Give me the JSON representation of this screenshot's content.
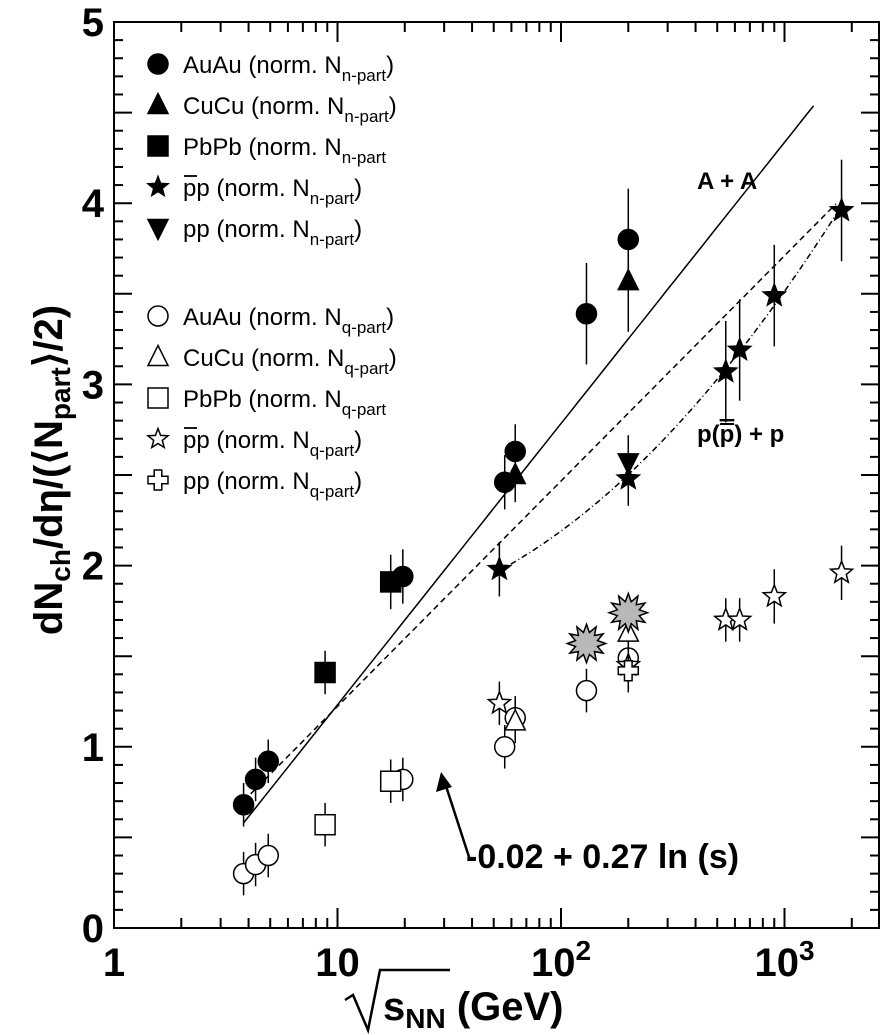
{
  "chart_data": {
    "type": "scatter",
    "title": "",
    "xscale": "log",
    "xlim": [
      1,
      2700
    ],
    "ylim": [
      0,
      5
    ],
    "xticks": [
      {
        "value": 1,
        "base": "1",
        "exp": ""
      },
      {
        "value": 10,
        "base": "10",
        "exp": ""
      },
      {
        "value": 100,
        "base": "10",
        "exp": "2"
      },
      {
        "value": 1000,
        "base": "10",
        "exp": "3"
      }
    ],
    "yticks": [
      "0",
      "1",
      "2",
      "3",
      "4",
      "5"
    ],
    "ylabel": "dN_ch/dη/(⟨N_part⟩/2)",
    "xlabel": "s_NN (GeV)",
    "legend_position": "top-left",
    "series": [
      {
        "name": "AuAu (norm. N_n-part)",
        "marker": "circle",
        "filled": true,
        "points": [
          [
            3.8,
            0.68
          ],
          [
            4.3,
            0.82
          ],
          [
            4.9,
            0.92
          ],
          [
            19.6,
            1.94
          ],
          [
            56,
            2.46
          ],
          [
            62.4,
            2.63
          ],
          [
            130,
            3.39
          ],
          [
            200,
            3.8
          ]
        ]
      },
      {
        "name": "CuCu (norm. N_n-part)",
        "marker": "triangle",
        "filled": true,
        "points": [
          [
            62.4,
            2.5
          ],
          [
            200,
            3.57
          ]
        ]
      },
      {
        "name": "PbPb (norm. N_n-part",
        "marker": "square",
        "filled": true,
        "points": [
          [
            8.8,
            1.41
          ],
          [
            17.3,
            1.91
          ]
        ]
      },
      {
        "name": "p̄p (norm. N_n-part)",
        "marker": "star",
        "filled": true,
        "points": [
          [
            53,
            1.98
          ],
          [
            200,
            2.48
          ],
          [
            546,
            3.07
          ],
          [
            630,
            3.19
          ],
          [
            900,
            3.49
          ],
          [
            1800,
            3.96
          ]
        ]
      },
      {
        "name": "pp (norm. N_n-part)",
        "marker": "triangle-down",
        "filled": true,
        "points": [
          [
            200,
            2.57
          ]
        ]
      },
      {
        "name": "AuAu (norm. N_q-part)",
        "marker": "circle",
        "filled": false,
        "points": [
          [
            3.8,
            0.3
          ],
          [
            4.3,
            0.35
          ],
          [
            4.9,
            0.4
          ],
          [
            19.6,
            0.82
          ],
          [
            56,
            1.0
          ],
          [
            62.4,
            1.16
          ],
          [
            130,
            1.31
          ],
          [
            200,
            1.49
          ]
        ]
      },
      {
        "name": "CuCu (norm. N_q-part)",
        "marker": "triangle",
        "filled": false,
        "points": [
          [
            62.4,
            1.14
          ],
          [
            200,
            1.63
          ]
        ]
      },
      {
        "name": "PbPb (norm. N_q-part",
        "marker": "square",
        "filled": false,
        "points": [
          [
            8.8,
            0.57
          ],
          [
            17.3,
            0.81
          ]
        ]
      },
      {
        "name": "p̄p (norm. N_q-part)",
        "marker": "star",
        "filled": false,
        "points": [
          [
            53,
            1.24
          ],
          [
            200,
            1.45
          ],
          [
            546,
            1.7
          ],
          [
            630,
            1.7
          ],
          [
            900,
            1.83
          ],
          [
            1800,
            1.96
          ]
        ]
      },
      {
        "name": "pp (norm. N_q-part)",
        "marker": "cross",
        "filled": false,
        "points": [
          [
            200,
            1.42
          ]
        ]
      },
      {
        "name": "",
        "marker": "burst",
        "filled": true,
        "color": "#b8b8b8",
        "points": [
          [
            130,
            1.57
          ],
          [
            200,
            1.74
          ]
        ]
      }
    ],
    "fits": [
      {
        "label": "A + A",
        "style": "solid",
        "a": -0.32,
        "b": 0.337
      },
      {
        "label": "p(p̄) + p",
        "style": "dashdot",
        "type": "quadratic",
        "points": [
          [
            53,
            1.98
          ],
          [
            200,
            2.48
          ],
          [
            546,
            3.07
          ],
          [
            900,
            3.49
          ],
          [
            1800,
            3.96
          ]
        ]
      },
      {
        "label": "-0.02 + 0.27 ln (s)",
        "style": "dashed",
        "a": -0.02,
        "b": 0.27
      }
    ],
    "annotations": {
      "aa_label": "A + A",
      "pp_label_pre": "p(",
      "pp_label_bar": "p",
      "pp_label_post": ") + p",
      "formula": "-0.02 + 0.27 ln (s)"
    }
  },
  "axis_title": {
    "y_main": "dN",
    "y_sub_ch": "ch",
    "y_mid": "/dη/(⟨N",
    "y_sub_part": "part",
    "y_end": "⟩/2)",
    "x_main": "s",
    "x_sub": "NN",
    "x_end": " (GeV)"
  },
  "legend": {
    "filled": [
      {
        "label": "AuAu (norm. N",
        "sub": "n-part",
        "tail": ")",
        "marker": "circle"
      },
      {
        "label": "CuCu (norm. N",
        "sub": "n-part",
        "tail": ")",
        "marker": "triangle"
      },
      {
        "label": "PbPb (norm. N",
        "sub": "n-part",
        "tail": "",
        "marker": "square"
      },
      {
        "label": "pp (norm. N",
        "sub": "n-part",
        "tail": ")",
        "marker": "star",
        "bar": true
      },
      {
        "label": "pp (norm. N",
        "sub": "n-part",
        "tail": ")",
        "marker": "triangle-down"
      }
    ],
    "open": [
      {
        "label": "AuAu (norm. N",
        "sub": "q-part",
        "tail": ")",
        "marker": "circle"
      },
      {
        "label": "CuCu (norm. N",
        "sub": "q-part",
        "tail": ")",
        "marker": "triangle"
      },
      {
        "label": "PbPb (norm. N",
        "sub": "q-part",
        "tail": "",
        "marker": "square"
      },
      {
        "label": "pp (norm. N",
        "sub": "q-part",
        "tail": ")",
        "marker": "star",
        "bar": true
      },
      {
        "label": "pp (norm. N",
        "sub": "q-part",
        "tail": ")",
        "marker": "cross"
      }
    ]
  }
}
